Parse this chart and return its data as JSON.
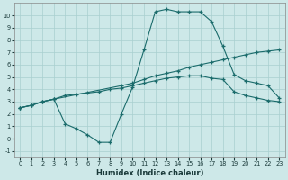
{
  "xlabel": "Humidex (Indice chaleur)",
  "xlim": [
    -0.5,
    23.5
  ],
  "ylim": [
    -1.5,
    11
  ],
  "xticks": [
    0,
    1,
    2,
    3,
    4,
    5,
    6,
    7,
    8,
    9,
    10,
    11,
    12,
    13,
    14,
    15,
    16,
    17,
    18,
    19,
    20,
    21,
    22,
    23
  ],
  "yticks": [
    -1,
    0,
    1,
    2,
    3,
    4,
    5,
    6,
    7,
    8,
    9,
    10
  ],
  "bg_color": "#cde8e8",
  "line_color": "#1a6b6b",
  "grid_color": "#a8cfcf",
  "line1_x": [
    0,
    1,
    2,
    3,
    9,
    10,
    11,
    12,
    13,
    14,
    15,
    16,
    17,
    18,
    19,
    20,
    21,
    22,
    23
  ],
  "line1_y": [
    2.5,
    2.7,
    3.0,
    3.2,
    4.3,
    4.5,
    4.8,
    5.1,
    5.3,
    5.5,
    5.8,
    6.0,
    6.2,
    6.4,
    6.6,
    6.8,
    7.0,
    7.1,
    7.2
  ],
  "line2_x": [
    0,
    1,
    2,
    3,
    4,
    5,
    6,
    7,
    8,
    9,
    10,
    11,
    12,
    13,
    14,
    15,
    16,
    17,
    18,
    19,
    20,
    21,
    22,
    23
  ],
  "line2_y": [
    2.5,
    2.7,
    3.0,
    3.2,
    1.2,
    0.8,
    0.3,
    -0.3,
    -0.3,
    2.0,
    4.2,
    7.2,
    10.3,
    10.5,
    10.3,
    10.3,
    10.3,
    9.5,
    7.5,
    5.2,
    4.7,
    4.5,
    4.3,
    3.3
  ],
  "line3_x": [
    0,
    1,
    2,
    3,
    4,
    5,
    6,
    7,
    8,
    9,
    10,
    11,
    12,
    13,
    14,
    15,
    16,
    17,
    18,
    19,
    20,
    21,
    22,
    23
  ],
  "line3_y": [
    2.5,
    2.7,
    3.0,
    3.2,
    3.5,
    3.6,
    3.7,
    3.8,
    4.0,
    4.1,
    4.3,
    4.5,
    4.7,
    4.9,
    5.0,
    5.1,
    5.1,
    4.9,
    4.8,
    3.8,
    3.5,
    3.3,
    3.1,
    3.0
  ]
}
